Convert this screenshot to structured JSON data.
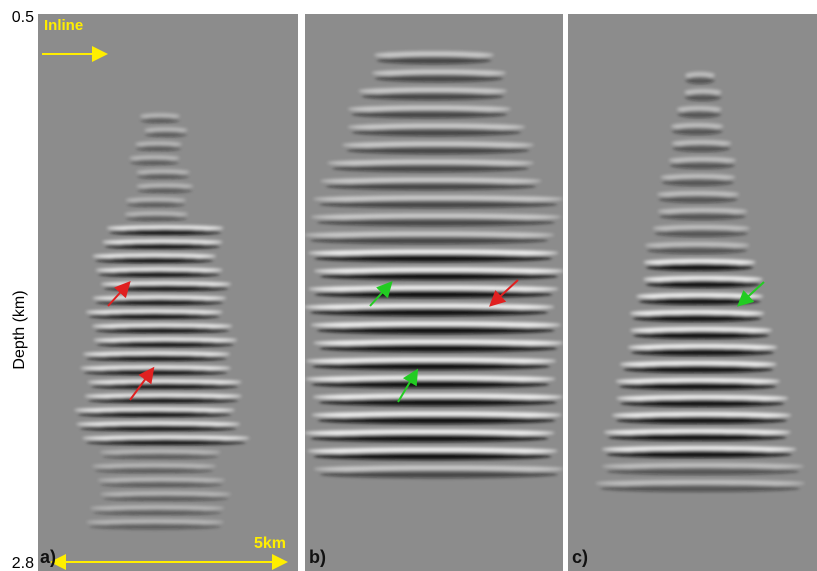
{
  "depth_axis": {
    "top": 0.5,
    "bottom": 2.8,
    "label": "Depth (km)"
  },
  "annotations": {
    "direction": "Inline",
    "scale": "5km"
  },
  "panels": [
    {
      "label": "a)"
    },
    {
      "label": "b)"
    },
    {
      "label": "c)"
    }
  ]
}
